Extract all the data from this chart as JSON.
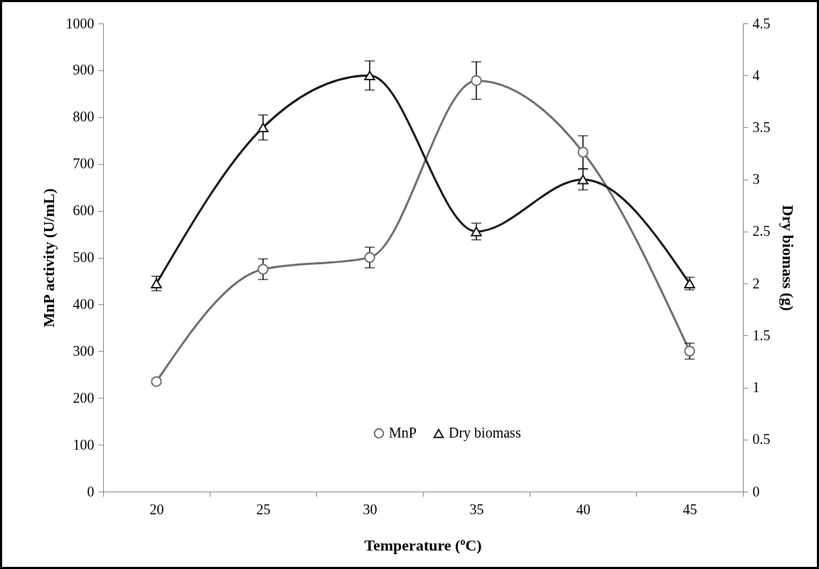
{
  "chart_data": {
    "type": "line",
    "xlabel": "Temperature ($^{o}$C)",
    "ylabel": "MnP activity (U/mL)",
    "y2label": "Dry biomass (g)",
    "categories": [
      "20",
      "25",
      "30",
      "35",
      "40",
      "45"
    ],
    "series": [
      {
        "name": "MnP",
        "color": "#707070",
        "marker": "circle",
        "values": [
          235,
          475,
          500,
          878,
          725,
          300
        ],
        "errors": [
          5,
          22,
          22,
          40,
          35,
          17
        ]
      },
      {
        "name": "Dry biomass",
        "color": "#1a1a1a",
        "marker": "triangle",
        "axis": "y2",
        "values": [
          2,
          3.5,
          4,
          2.5,
          3,
          2
        ],
        "errors": [
          0.07,
          0.12,
          0.14,
          0.08,
          0.1,
          0.06
        ]
      }
    ],
    "ylim": [
      0,
      1000
    ],
    "yticks": [
      0,
      100,
      200,
      300,
      400,
      500,
      600,
      700,
      800,
      900,
      1000
    ],
    "y2lim": [
      0,
      4.5
    ],
    "y2ticks": [
      0,
      0.5,
      1,
      1.5,
      2,
      2.5,
      3,
      3.5,
      4,
      4.5
    ],
    "grid": false,
    "legend": "bottom",
    "line_style": "solid"
  }
}
